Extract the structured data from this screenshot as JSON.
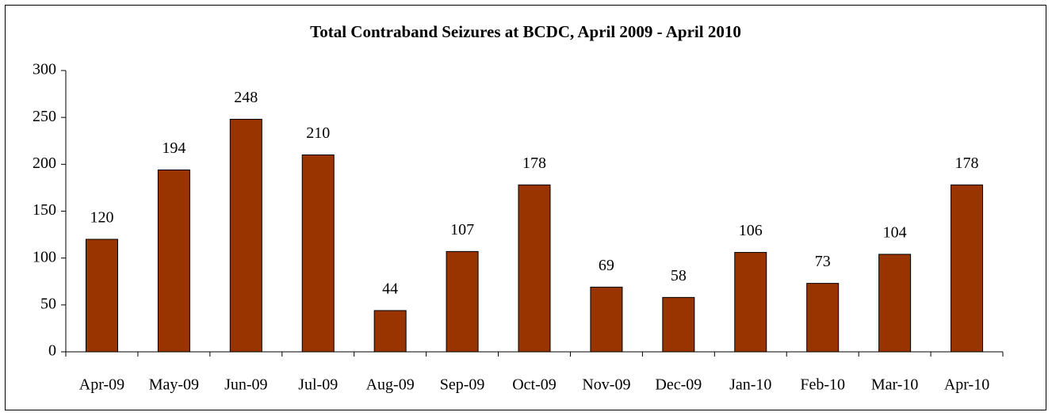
{
  "chart_data": {
    "type": "bar",
    "title": "Total Contraband Seizures at BCDC, April 2009 - April 2010",
    "categories": [
      "Apr-09",
      "May-09",
      "Jun-09",
      "Jul-09",
      "Aug-09",
      "Sep-09",
      "Oct-09",
      "Nov-09",
      "Dec-09",
      "Jan-10",
      "Feb-10",
      "Mar-10",
      "Apr-10"
    ],
    "values": [
      120,
      194,
      248,
      210,
      44,
      107,
      178,
      69,
      58,
      106,
      73,
      104,
      178
    ],
    "color": "#993300",
    "ylim": [
      0,
      300
    ],
    "yticks": [
      0,
      50,
      100,
      150,
      200,
      250,
      300
    ],
    "grid": false
  }
}
